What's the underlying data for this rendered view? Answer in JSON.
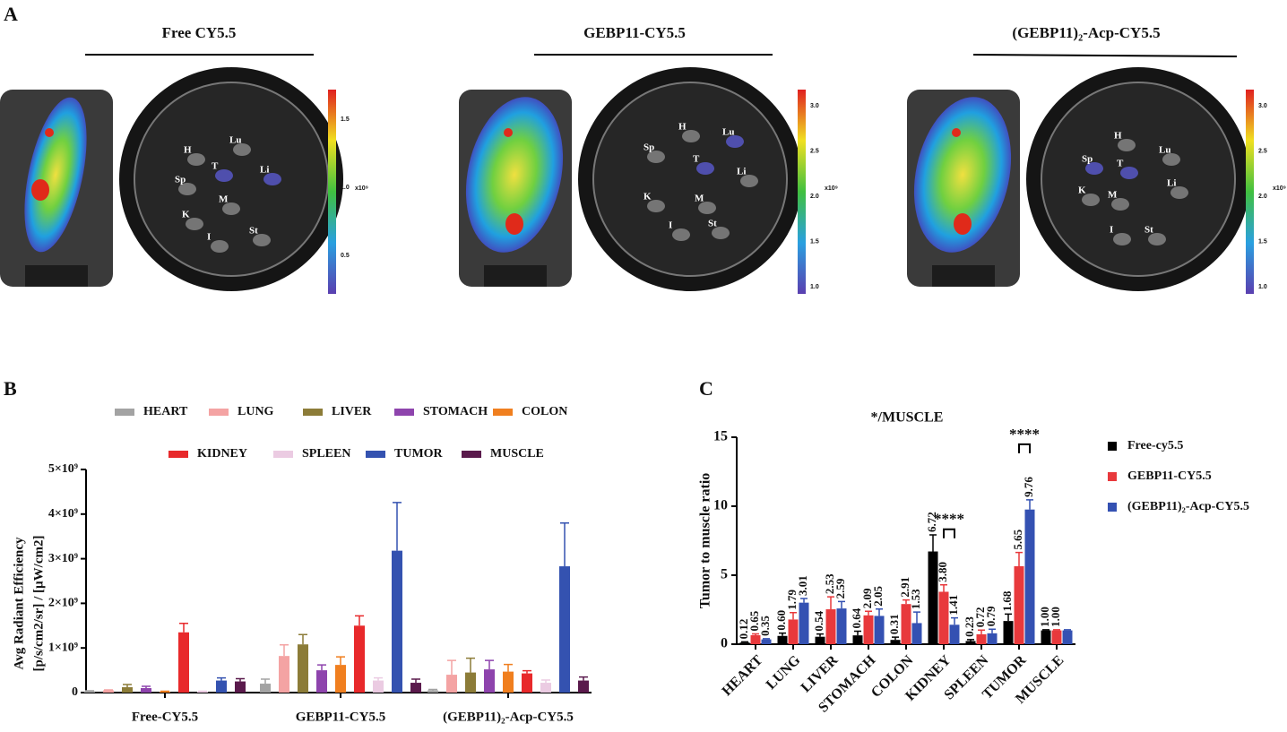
{
  "panel_labels": [
    "A",
    "B",
    "C"
  ],
  "panel_a": {
    "panels": [
      {
        "title": "Free CY5.5",
        "organs": [
          "H",
          "Lu",
          "T",
          "Li",
          "Sp",
          "M",
          "K",
          "I",
          "St"
        ],
        "colorbar_ticks": [
          "1.5",
          "1.0",
          "0.5"
        ],
        "colorbar_unit": "x10⁹"
      },
      {
        "title": "GEBP11-CY5.5",
        "organs": [
          "Sp",
          "H",
          "Lu",
          "T",
          "Li",
          "K",
          "M",
          "I",
          "St"
        ],
        "colorbar_ticks": [
          "3.0",
          "2.5",
          "2.0",
          "1.5",
          "1.0"
        ],
        "colorbar_unit": "x10⁹"
      },
      {
        "title": "(GEBP11)₂-Acp-CY5.5",
        "organs": [
          "H",
          "Lu",
          "Sp",
          "T",
          "Li",
          "K",
          "M",
          "I",
          "St"
        ],
        "colorbar_ticks": [
          "3.0",
          "2.5",
          "2.0",
          "1.5",
          "1.0"
        ],
        "colorbar_unit": "x10⁹"
      }
    ]
  },
  "chart_data": [
    {
      "type": "bar",
      "ylabel": [
        "Avg Radiant Efficiency",
        "[p/s/cm2/sr] / [µW/cm2]"
      ],
      "categories": [
        "Free-CY5.5",
        "GEBP11-CY5.5",
        "(GEBP11)₂-Acp-CY5.5"
      ],
      "ylim": [
        0,
        5000000000
      ],
      "yticks": [
        0,
        {
          "value": 1000000000,
          "label": "1×10⁹"
        },
        {
          "value": 2000000000,
          "label": "2×10⁹"
        },
        {
          "value": 3000000000,
          "label": "3×10⁹"
        },
        {
          "value": 4000000000,
          "label": "4×10⁹"
        },
        {
          "value": 5000000000,
          "label": "5×10⁹"
        }
      ],
      "legend": "top",
      "series": [
        {
          "name": "HEART",
          "color": "#a3a3a3",
          "values": [
            30000000,
            200000000,
            50000000
          ],
          "errors": [
            10000000,
            100000000,
            20000000
          ]
        },
        {
          "name": "LUNG",
          "color": "#f4a3a3",
          "values": [
            50000000,
            820000000,
            400000000
          ],
          "errors": [
            10000000,
            250000000,
            320000000
          ]
        },
        {
          "name": "LIVER",
          "color": "#8c7c38",
          "values": [
            120000000,
            1080000000,
            450000000
          ],
          "errors": [
            60000000,
            220000000,
            320000000
          ]
        },
        {
          "name": "STOMACH",
          "color": "#8e44ad",
          "values": [
            100000000,
            500000000,
            520000000
          ],
          "errors": [
            40000000,
            120000000,
            200000000
          ]
        },
        {
          "name": "COLON",
          "color": "#f07f1f",
          "values": [
            20000000,
            620000000,
            470000000
          ],
          "errors": [
            10000000,
            180000000,
            160000000
          ]
        },
        {
          "name": "KIDNEY",
          "color": "#e8292b",
          "values": [
            1350000000,
            1500000000,
            430000000
          ],
          "errors": [
            200000000,
            220000000,
            60000000
          ]
        },
        {
          "name": "SPLEEN",
          "color": "#ebcbe2",
          "values": [
            20000000,
            270000000,
            220000000
          ],
          "errors": [
            10000000,
            60000000,
            60000000
          ]
        },
        {
          "name": "TUMOR",
          "color": "#3452b0",
          "values": [
            270000000,
            3180000000,
            2830000000
          ],
          "errors": [
            60000000,
            1080000000,
            970000000
          ]
        },
        {
          "name": "MUSCLE",
          "color": "#5a1a4c",
          "values": [
            250000000,
            220000000,
            270000000
          ],
          "errors": [
            60000000,
            80000000,
            80000000
          ]
        }
      ]
    },
    {
      "type": "bar",
      "title": "*/MUSCLE",
      "ylabel": "Tumor to muscle ratio",
      "categories": [
        "HEART",
        "LUNG",
        "LIVER",
        "STOMACH",
        "COLON",
        "KIDNEY",
        "SPLEEN",
        "TUMOR",
        "MUSCLE"
      ],
      "ylim": [
        0,
        15
      ],
      "yticks": [
        0,
        5,
        10,
        15
      ],
      "legend": "right",
      "annotations": [
        "****",
        "****"
      ],
      "series": [
        {
          "name": "Free-cy5.5",
          "color": "#000000",
          "values": [
            0.12,
            0.6,
            0.54,
            0.64,
            0.31,
            6.72,
            0.23,
            1.68,
            1
          ],
          "value_labels": [
            "0.12",
            "0.60",
            "0.54",
            "0.64",
            "0.31",
            "6.72",
            "0.23",
            "1.68",
            "1.00"
          ],
          "errors": [
            0.05,
            0.2,
            0.2,
            0.3,
            0.2,
            1.2,
            0.1,
            0.5,
            0.05
          ]
        },
        {
          "name": "GEBP11-CY5.5",
          "color": "#e8393c",
          "values": [
            0.65,
            1.79,
            2.53,
            2.09,
            2.91,
            3.8,
            0.72,
            5.65,
            1
          ],
          "value_labels": [
            "0.65",
            "1.79",
            "2.53",
            "2.09",
            "2.91",
            "3.80",
            "0.72",
            "5.65",
            "1.00"
          ],
          "errors": [
            0.1,
            0.5,
            0.9,
            0.3,
            0.3,
            0.5,
            0.3,
            1.0,
            0.05
          ]
        },
        {
          "name": "(GEBP11)₂-Acp-CY5.5",
          "color": "#3451b2",
          "values": [
            0.35,
            3.01,
            2.59,
            2.05,
            1.53,
            1.41,
            0.79,
            9.76,
            1
          ],
          "value_labels": [
            "0.35",
            "3.01",
            "2.59",
            "2.05",
            "1.53",
            "1.41",
            "0.79",
            "9.76",
            null
          ],
          "errors": [
            0.05,
            0.3,
            0.5,
            0.5,
            0.8,
            0.5,
            0.3,
            0.7,
            0.05
          ]
        }
      ]
    }
  ]
}
